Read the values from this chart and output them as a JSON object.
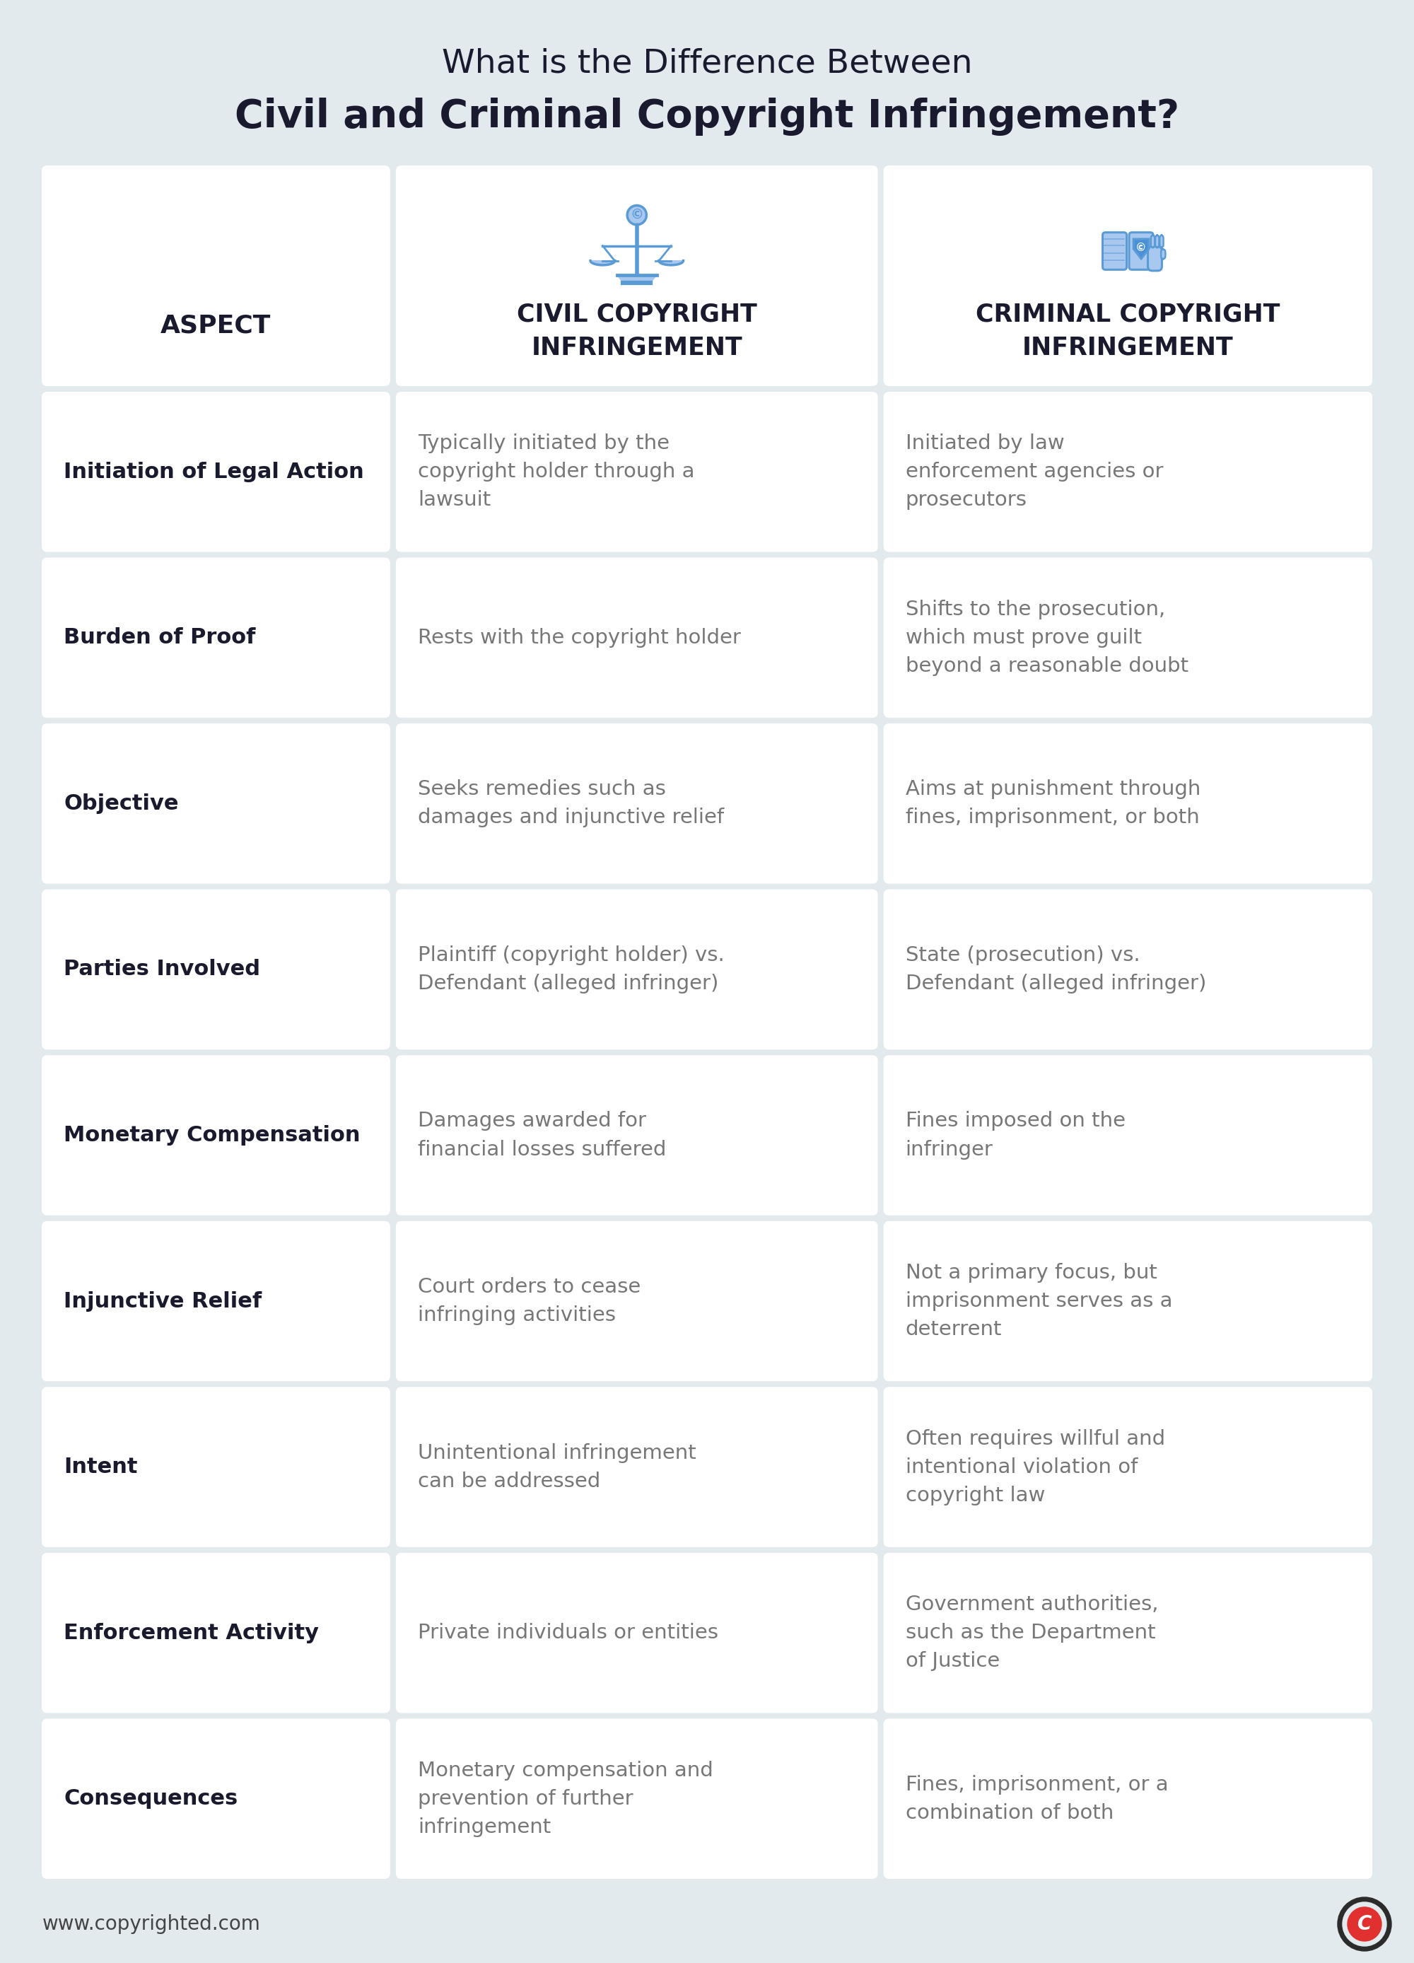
{
  "bg_color": "#e2eaee",
  "white": "#ffffff",
  "title_line1": "What is the Difference Between",
  "title_line2": "Civil and Criminal Copyright Infringement?",
  "title_color": "#1a1a2e",
  "header_label": "ASPECT",
  "header_civil": "CIVIL COPYRIGHT\nINFRINGEMENT",
  "header_criminal": "CRIMINAL COPYRIGHT\nINFRINGEMENT",
  "header_text_color": "#1a1a2e",
  "aspect_text_color": "#1a1a2e",
  "civil_text_color": "#777777",
  "criminal_text_color": "#777777",
  "rows": [
    {
      "aspect": "Initiation of Legal Action",
      "civil": "Typically initiated by the\ncopyright holder through a\nlawsuit",
      "criminal": "Initiated by law\nenforcement agencies or\nprosecutors"
    },
    {
      "aspect": "Burden of Proof",
      "civil": "Rests with the copyright holder",
      "criminal": "Shifts to the prosecution,\nwhich must prove guilt\nbeyond a reasonable doubt"
    },
    {
      "aspect": "Objective",
      "civil": "Seeks remedies such as\ndamages and injunctive relief",
      "criminal": "Aims at punishment through\nfines, imprisonment, or both"
    },
    {
      "aspect": "Parties Involved",
      "civil": "Plaintiff (copyright holder) vs.\nDefendant (alleged infringer)",
      "criminal": "State (prosecution) vs.\nDefendant (alleged infringer)"
    },
    {
      "aspect": "Monetary Compensation",
      "civil": "Damages awarded for\nfinancial losses suffered",
      "criminal": "Fines imposed on the\ninfringer"
    },
    {
      "aspect": "Injunctive Relief",
      "civil": "Court orders to cease\ninfringing activities",
      "criminal": "Not a primary focus, but\nimprisonment serves as a\ndeterrent"
    },
    {
      "aspect": "Intent",
      "civil": "Unintentional infringement\ncan be addressed",
      "criminal": "Often requires willful and\nintentional violation of\ncopyright law"
    },
    {
      "aspect": "Enforcement Activity",
      "civil": "Private individuals or entities",
      "criminal": "Government authorities,\nsuch as the Department\nof Justice"
    },
    {
      "aspect": "Consequences",
      "civil": "Monetary compensation and\nprevention of further\ninfringement",
      "criminal": "Fines, imprisonment, or a\ncombination of both"
    }
  ],
  "footer_text": "www.copyrighted.com",
  "footer_color": "#444444",
  "icon_color": "#5b9bd5",
  "icon_light": "#a8c8f0",
  "border_color": "#d0d8e0"
}
